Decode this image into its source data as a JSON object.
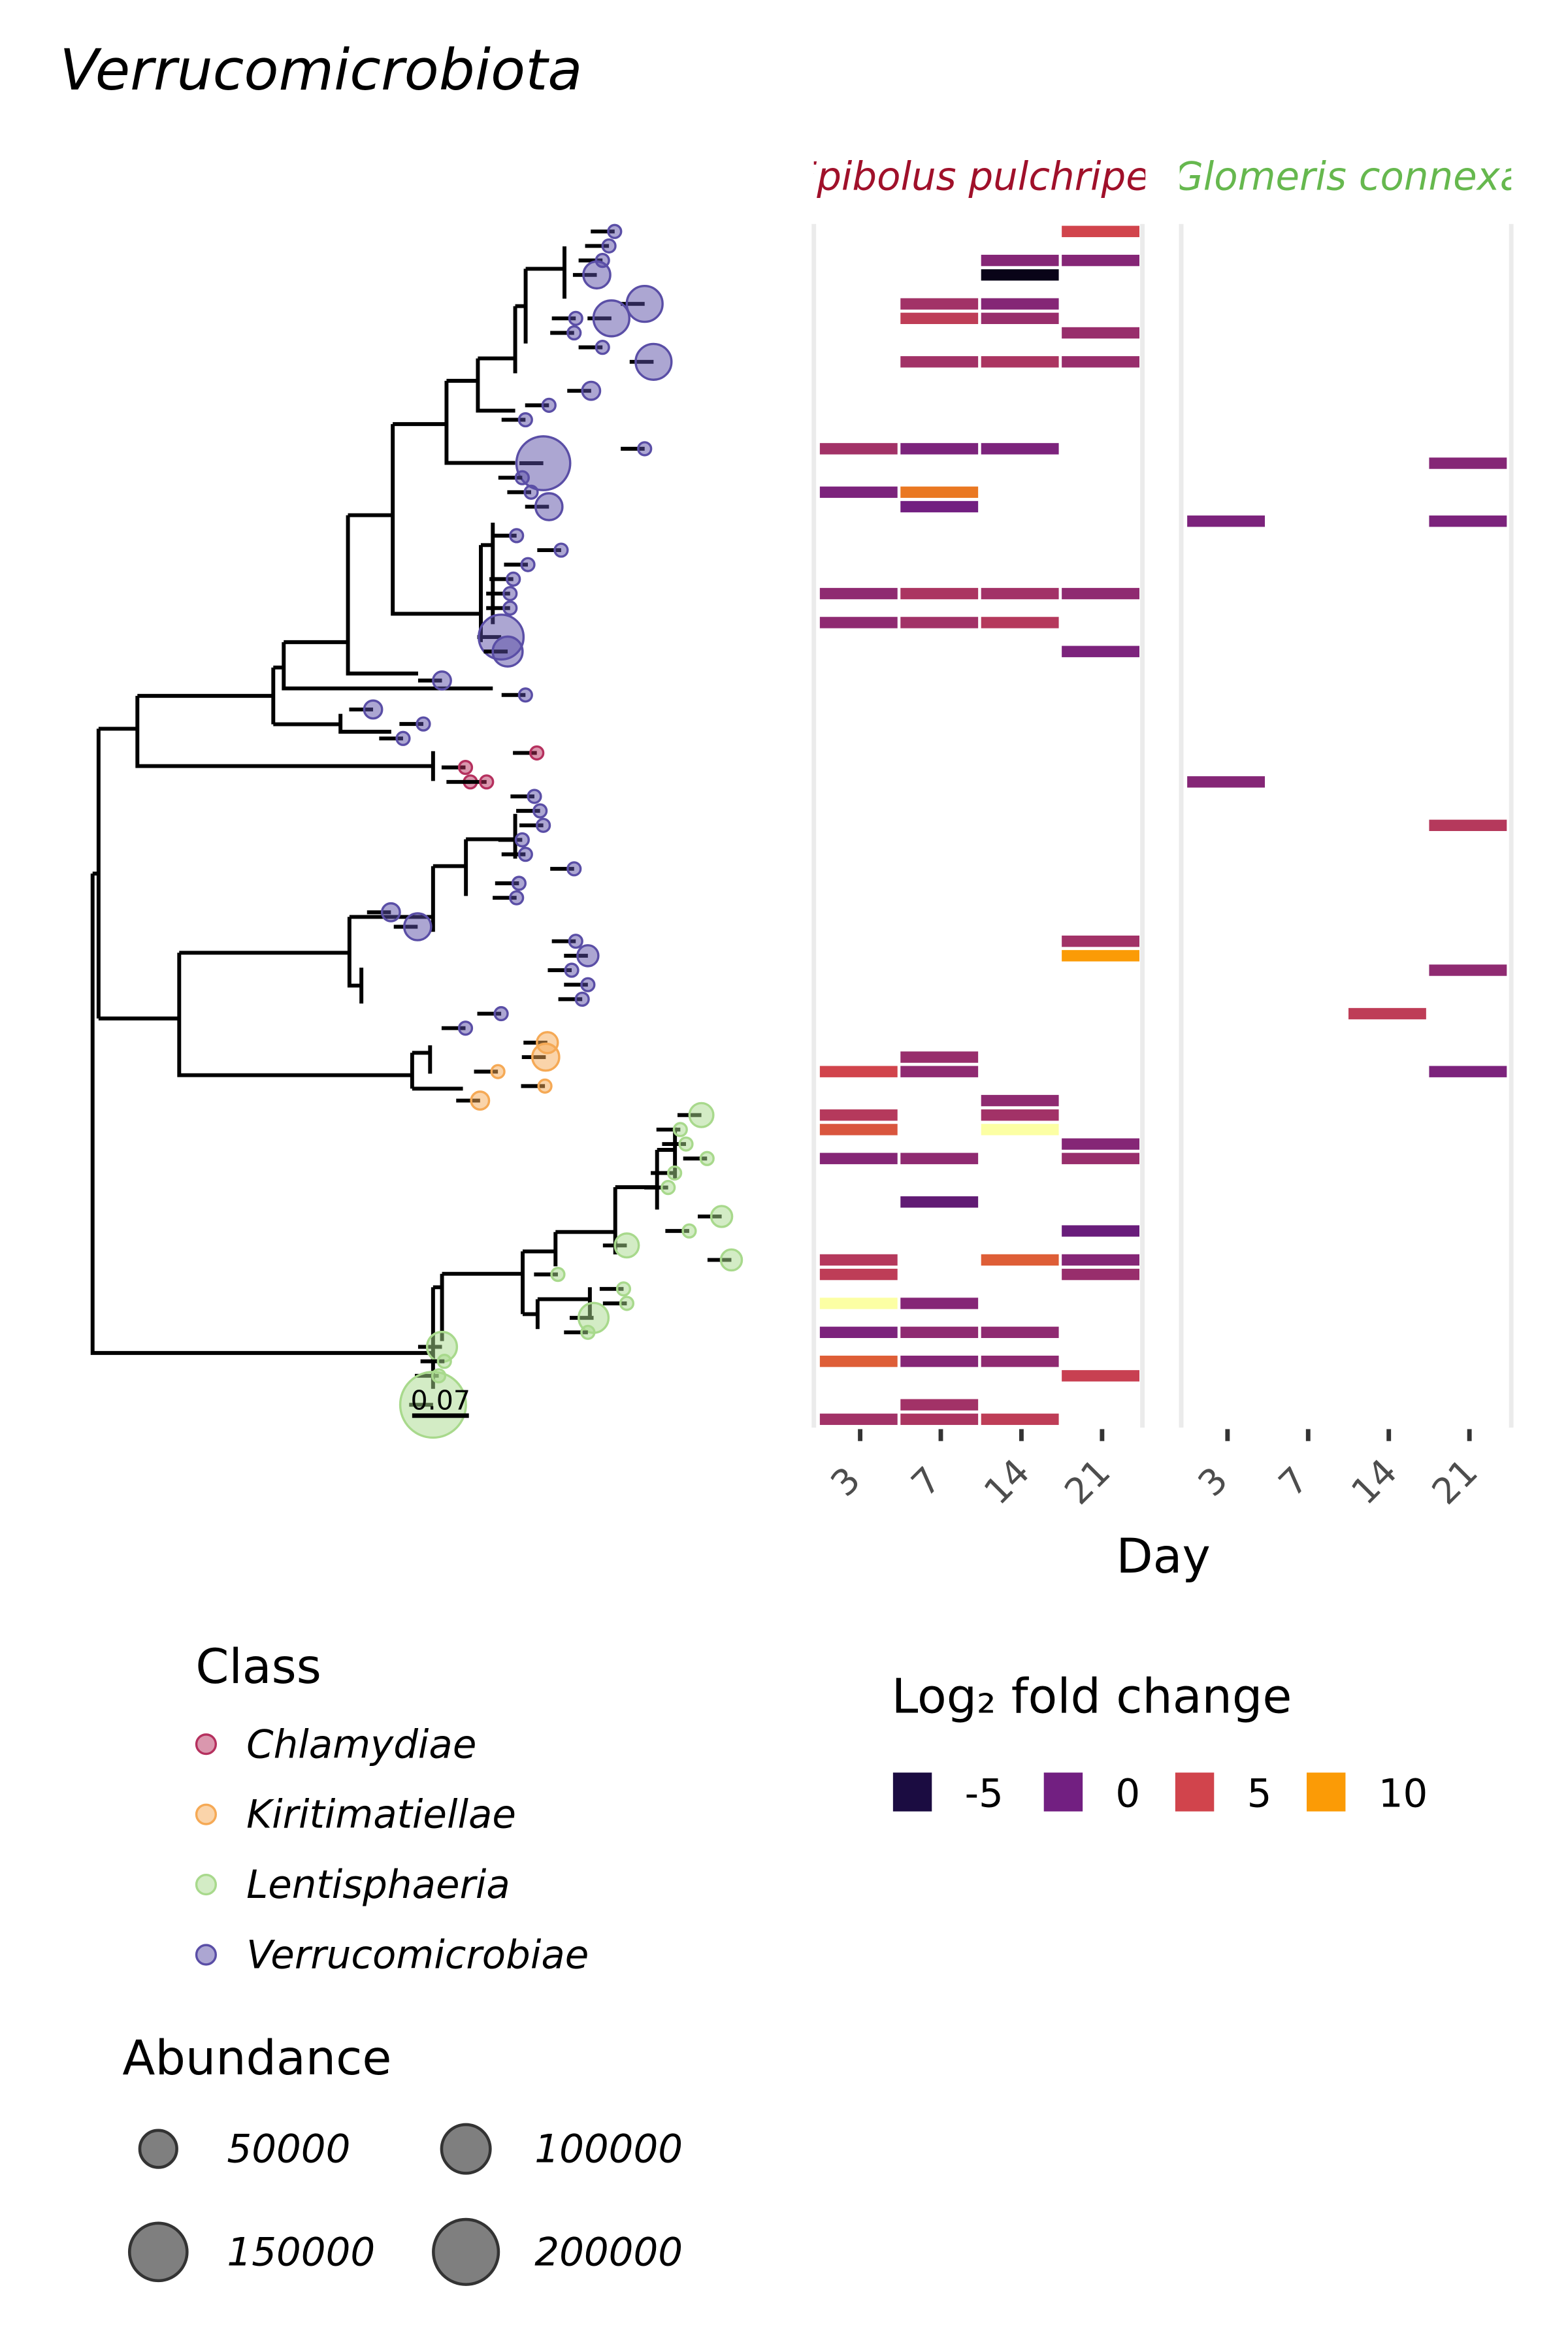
{
  "chart_data": {
    "type": "tree_heatmap",
    "title": "Verrucomicrobiota",
    "facets": [
      {
        "name": "Epibolus pulchripes",
        "color": "#a0102a"
      },
      {
        "name": "Glomeris connexa",
        "color": "#66b84e"
      }
    ],
    "days": [
      "3",
      "7",
      "14",
      "21"
    ],
    "x_label": "Day",
    "scale_bar": 0.07,
    "cells": [
      [
        0,
        3,
        0,
        5
      ],
      [
        0,
        2,
        2,
        1
      ],
      [
        0,
        3,
        2,
        1
      ],
      [
        0,
        2,
        3,
        -6
      ],
      [
        0,
        1,
        5,
        2.5
      ],
      [
        0,
        2,
        5,
        1
      ],
      [
        0,
        1,
        6,
        4
      ],
      [
        0,
        2,
        6,
        2
      ],
      [
        0,
        3,
        7,
        2
      ],
      [
        0,
        1,
        9,
        2.5
      ],
      [
        0,
        2,
        9,
        3
      ],
      [
        0,
        3,
        9,
        2
      ],
      [
        0,
        0,
        15,
        2.5
      ],
      [
        0,
        1,
        15,
        0.5
      ],
      [
        0,
        2,
        15,
        0.5
      ],
      [
        0,
        0,
        18,
        0.5
      ],
      [
        0,
        1,
        18,
        8
      ],
      [
        0,
        1,
        19,
        0
      ],
      [
        0,
        0,
        25,
        1.5
      ],
      [
        0,
        1,
        25,
        3
      ],
      [
        0,
        2,
        25,
        2.5
      ],
      [
        0,
        3,
        25,
        1.5
      ],
      [
        0,
        0,
        27,
        1.5
      ],
      [
        0,
        1,
        27,
        2.5
      ],
      [
        0,
        2,
        27,
        3.5
      ],
      [
        0,
        3,
        29,
        0.5
      ],
      [
        0,
        3,
        49,
        2.5
      ],
      [
        0,
        3,
        50,
        10
      ],
      [
        0,
        1,
        57,
        2
      ],
      [
        0,
        0,
        58,
        5
      ],
      [
        0,
        1,
        58,
        1.5
      ],
      [
        0,
        2,
        60,
        1.5
      ],
      [
        0,
        0,
        61,
        3.5
      ],
      [
        0,
        2,
        61,
        2.5
      ],
      [
        0,
        0,
        62,
        6
      ],
      [
        0,
        2,
        62,
        13
      ],
      [
        0,
        3,
        63,
        1
      ],
      [
        0,
        0,
        64,
        1
      ],
      [
        0,
        1,
        64,
        1.5
      ],
      [
        0,
        3,
        64,
        2
      ],
      [
        0,
        1,
        67,
        -1
      ],
      [
        0,
        3,
        69,
        -0.5
      ],
      [
        0,
        0,
        71,
        3.5
      ],
      [
        0,
        2,
        71,
        6.5
      ],
      [
        0,
        3,
        71,
        1
      ],
      [
        0,
        0,
        72,
        4
      ],
      [
        0,
        3,
        72,
        2
      ],
      [
        0,
        0,
        74,
        13
      ],
      [
        0,
        1,
        74,
        1
      ],
      [
        0,
        0,
        76,
        0.5
      ],
      [
        0,
        1,
        76,
        1.5
      ],
      [
        0,
        2,
        76,
        1.5
      ],
      [
        0,
        0,
        78,
        6.5
      ],
      [
        0,
        1,
        78,
        1
      ],
      [
        0,
        2,
        78,
        1.5
      ],
      [
        0,
        3,
        79,
        4.5
      ],
      [
        0,
        1,
        81,
        2.5
      ],
      [
        0,
        0,
        82,
        2.5
      ],
      [
        0,
        1,
        82,
        3
      ],
      [
        0,
        2,
        82,
        4
      ],
      [
        1,
        3,
        16,
        1
      ],
      [
        1,
        0,
        20,
        0.5
      ],
      [
        1,
        3,
        20,
        0.5
      ],
      [
        1,
        0,
        38,
        1
      ],
      [
        1,
        3,
        41,
        3.5
      ],
      [
        1,
        3,
        51,
        1.5
      ],
      [
        1,
        2,
        54,
        4
      ],
      [
        1,
        3,
        58,
        0.5
      ]
    ],
    "tips": [
      [
        0,
        0.644,
        3,
        1000
      ],
      [
        1,
        0.637,
        3,
        1000
      ],
      [
        2,
        0.629,
        3,
        1000
      ],
      [
        3,
        0.622,
        3,
        20400
      ],
      [
        5,
        0.681,
        3,
        45900
      ],
      [
        6,
        0.64,
        3,
        45900
      ],
      [
        6,
        0.596,
        3,
        1000
      ],
      [
        7,
        0.594,
        3,
        1000
      ],
      [
        9,
        0.692,
        3,
        45900
      ],
      [
        8,
        0.629,
        3,
        1000
      ],
      [
        11,
        0.615,
        3,
        5100
      ],
      [
        12,
        0.563,
        3,
        1000
      ],
      [
        13,
        0.534,
        3,
        1000
      ],
      [
        15,
        0.681,
        3,
        1000
      ],
      [
        16,
        0.556,
        3,
        127600
      ],
      [
        17,
        0.53,
        3,
        1000
      ],
      [
        18,
        0.541,
        3,
        1000
      ],
      [
        19,
        0.563,
        3,
        20400
      ],
      [
        21,
        0.523,
        3,
        1000
      ],
      [
        22,
        0.578,
        3,
        1000
      ],
      [
        23,
        0.537,
        3,
        1000
      ],
      [
        24,
        0.519,
        3,
        1000
      ],
      [
        25,
        0.515,
        3,
        1000
      ],
      [
        26,
        0.515,
        3,
        1000
      ],
      [
        28,
        0.504,
        3,
        81600
      ],
      [
        29,
        0.512,
        3,
        27800
      ],
      [
        31,
        0.431,
        3,
        5100
      ],
      [
        32,
        0.534,
        3,
        1000
      ],
      [
        33,
        0.346,
        3,
        5100
      ],
      [
        34,
        0.408,
        3,
        1000
      ],
      [
        35,
        0.383,
        3,
        1000
      ],
      [
        36,
        0.548,
        0,
        1000
      ],
      [
        37,
        0.46,
        0,
        1000
      ],
      [
        38,
        0.466,
        0,
        1000
      ],
      [
        38,
        0.486,
        0,
        1000
      ],
      [
        39,
        0.545,
        3,
        1000
      ],
      [
        40,
        0.552,
        3,
        1000
      ],
      [
        41,
        0.556,
        3,
        1000
      ],
      [
        42,
        0.53,
        3,
        1000
      ],
      [
        43,
        0.534,
        3,
        1000
      ],
      [
        44,
        0.594,
        3,
        1000
      ],
      [
        45,
        0.526,
        3,
        1000
      ],
      [
        46,
        0.523,
        3,
        1000
      ],
      [
        47,
        0.368,
        3,
        5100
      ],
      [
        48,
        0.401,
        3,
        20400
      ],
      [
        49,
        0.596,
        3,
        1000
      ],
      [
        50,
        0.611,
        3,
        9100
      ],
      [
        51,
        0.591,
        3,
        1000
      ],
      [
        52,
        0.611,
        3,
        1000
      ],
      [
        53,
        0.604,
        3,
        1000
      ],
      [
        54,
        0.504,
        3,
        1000
      ],
      [
        55,
        0.46,
        3,
        1000
      ],
      [
        56,
        0.561,
        1,
        9100
      ],
      [
        57,
        0.559,
        1,
        20400
      ],
      [
        58,
        0.5,
        1,
        1000
      ],
      [
        59,
        0.558,
        1,
        1000
      ],
      [
        60,
        0.478,
        1,
        5100
      ],
      [
        61,
        0.751,
        2,
        14200
      ],
      [
        62,
        0.725,
        2,
        1000
      ],
      [
        63,
        0.732,
        2,
        1000
      ],
      [
        64,
        0.758,
        2,
        1000
      ],
      [
        65,
        0.718,
        2,
        1000
      ],
      [
        66,
        0.71,
        2,
        1000
      ],
      [
        68,
        0.776,
        2,
        9100
      ],
      [
        69,
        0.736,
        2,
        1000
      ],
      [
        70,
        0.659,
        2,
        14200
      ],
      [
        71,
        0.788,
        2,
        9100
      ],
      [
        72,
        0.574,
        2,
        1000
      ],
      [
        73,
        0.655,
        2,
        1000
      ],
      [
        74,
        0.659,
        2,
        1000
      ],
      [
        75,
        0.618,
        2,
        27800
      ],
      [
        76,
        0.611,
        2,
        1000
      ],
      [
        77,
        0.431,
        2,
        27800
      ],
      [
        78,
        0.434,
        2,
        1000
      ],
      [
        79,
        0.427,
        2,
        1000
      ],
      [
        81,
        0.42,
        2,
        204600
      ]
    ],
    "class_legend": {
      "title": "Class",
      "items": [
        {
          "name": "Chlamydiae",
          "color": "#b5305e"
        },
        {
          "name": "Kiritimatiellae",
          "color": "#f5a955"
        },
        {
          "name": "Lentisphaeria",
          "color": "#a8d98c"
        },
        {
          "name": "Verrucomicrobiae",
          "color": "#5a4ea6"
        }
      ]
    },
    "size_legend": {
      "title": "Abundance",
      "values": [
        50000,
        100000,
        150000,
        200000
      ]
    },
    "color_legend": {
      "title": "Log₂ fold change",
      "values": [
        -5,
        0,
        5,
        10
      ],
      "colors": [
        "#1b0c41",
        "#721f81",
        "#d1444c",
        "#fb9b06"
      ],
      "limits": [
        -6.5,
        13
      ],
      "limit_colors": [
        "#000004",
        "#fcffa4"
      ]
    }
  }
}
